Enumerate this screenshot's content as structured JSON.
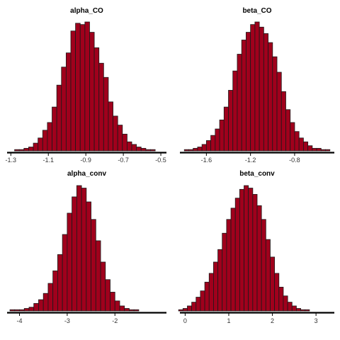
{
  "chart_data": [
    {
      "type": "bar",
      "title": "alpha_CO",
      "xlim": [
        -1.32,
        -0.47
      ],
      "ticks": [
        -1.3,
        -1.1,
        -0.9,
        -0.7,
        -0.5
      ],
      "tick_labels": [
        "-1.3",
        "-1.1",
        "-0.9",
        "-0.7",
        "-0.5"
      ],
      "bin_start": -1.28,
      "bin_width": 0.025,
      "values": [
        1,
        1,
        2,
        3,
        6,
        10,
        16,
        22,
        34,
        51,
        65,
        76,
        93,
        99,
        98,
        100,
        92,
        80,
        68,
        57,
        38,
        27,
        20,
        13,
        7,
        5,
        3,
        2,
        1,
        1
      ],
      "color": "#a0001c"
    },
    {
      "type": "bar",
      "title": "beta_CO",
      "xlim": [
        -1.84,
        -0.44
      ],
      "ticks": [
        -1.6,
        -1.2,
        -0.8
      ],
      "tick_labels": [
        "-1.6",
        "-1.2",
        "-0.8"
      ],
      "bin_start": -1.8,
      "bin_width": 0.04,
      "values": [
        1,
        1,
        2,
        3,
        5,
        8,
        12,
        17,
        24,
        34,
        47,
        62,
        75,
        86,
        92,
        98,
        100,
        96,
        91,
        84,
        73,
        61,
        46,
        32,
        22,
        15,
        10,
        7,
        4,
        2,
        2,
        1,
        1
      ],
      "color": "#a0001c"
    },
    {
      "type": "bar",
      "title": "alpha_conv",
      "xlim": [
        -4.26,
        -0.92
      ],
      "ticks": [
        -4,
        -3,
        -2
      ],
      "tick_labels": [
        "-4",
        "-3",
        "-2"
      ],
      "bin_start": -4.2,
      "bin_width": 0.1,
      "values": [
        1,
        1,
        1,
        2,
        3,
        6,
        9,
        14,
        22,
        32,
        45,
        61,
        78,
        91,
        100,
        98,
        87,
        73,
        56,
        39,
        25,
        15,
        8,
        4,
        2,
        1,
        1
      ],
      "color": "#a0001c"
    },
    {
      "type": "bar",
      "title": "beta_conv",
      "xlim": [
        -0.12,
        3.42
      ],
      "ticks": [
        0,
        1,
        2,
        3
      ],
      "tick_labels": [
        "0",
        "1",
        "2",
        "3"
      ],
      "bin_start": -0.15,
      "bin_width": 0.1,
      "values": [
        1,
        2,
        4,
        7,
        11,
        16,
        23,
        30,
        39,
        49,
        62,
        73,
        82,
        90,
        97,
        100,
        98,
        93,
        84,
        73,
        57,
        43,
        30,
        19,
        12,
        7,
        4,
        2,
        1,
        1
      ],
      "color": "#a0001c"
    }
  ]
}
